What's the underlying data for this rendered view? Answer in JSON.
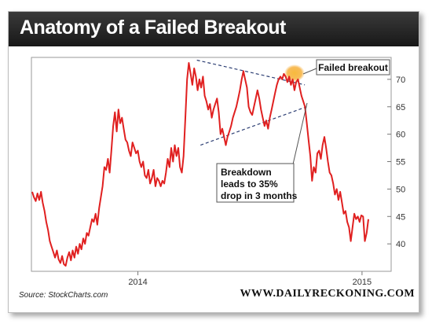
{
  "header": {
    "title": "Anatomy of a Failed Breakout"
  },
  "footer": {
    "source": "Source: StockCharts.com",
    "site": "WWW.DAILYRECKONING.COM"
  },
  "colors": {
    "price_line": "#e02020",
    "trend_line": "#2c3e73",
    "highlight": "#f5a623",
    "title_bg": "#2a2a2a"
  },
  "chart_data": {
    "type": "line",
    "title": "Anatomy of a Failed Breakout",
    "xlabel": "",
    "ylabel": "",
    "x_ticks": [
      "2014",
      "2015"
    ],
    "y_ticks": [
      40,
      45,
      50,
      55,
      60,
      65,
      70
    ],
    "ylim": [
      35,
      74
    ],
    "grid": false,
    "series": [
      {
        "name": "",
        "color": "#e02020",
        "values": [
          49.5,
          48.5,
          47.8,
          49.2,
          48.0,
          49.5,
          47.5,
          46.0,
          44.0,
          42.5,
          40.5,
          39.5,
          38.5,
          37.5,
          38.8,
          37.2,
          36.5,
          37.8,
          36.3,
          36.0,
          37.5,
          38.5,
          37.0,
          38.8,
          37.5,
          39.5,
          38.2,
          40.0,
          39.0,
          41.0,
          40.0,
          42.0,
          41.5,
          43.0,
          44.5,
          44.0,
          45.5,
          43.5,
          46.5,
          48.5,
          50.5,
          54.0,
          53.5,
          55.5,
          53.0,
          57.0,
          61.5,
          64.0,
          60.5,
          64.5,
          62.0,
          63.0,
          61.0,
          59.0,
          58.5,
          57.0,
          56.0,
          58.5,
          57.5,
          56.5,
          57.0,
          55.0,
          54.0,
          55.0,
          52.5,
          52.0,
          53.5,
          51.0,
          52.0,
          53.5,
          50.5,
          52.0,
          51.5,
          50.5,
          51.5,
          51.0,
          53.0,
          55.5,
          54.0,
          57.5,
          55.0,
          58.0,
          56.0,
          57.5,
          54.0,
          53.0,
          56.0,
          63.0,
          70.0,
          73.0,
          71.0,
          69.0,
          72.0,
          70.5,
          68.0,
          70.0,
          68.5,
          70.5,
          67.0,
          66.0,
          64.5,
          65.5,
          63.0,
          64.5,
          65.5,
          66.5,
          64.0,
          60.0,
          61.0,
          59.5,
          58.0,
          59.5,
          60.5,
          61.5,
          63.0,
          64.0,
          65.0,
          66.5,
          68.0,
          70.0,
          71.5,
          70.0,
          68.5,
          65.0,
          64.0,
          63.5,
          65.0,
          66.5,
          68.0,
          66.5,
          64.5,
          63.0,
          61.5,
          62.5,
          61.0,
          63.0,
          64.5,
          66.0,
          67.5,
          69.0,
          70.0,
          70.5,
          70.0,
          71.0,
          70.5,
          69.5,
          70.5,
          69.0,
          70.0,
          68.0,
          69.5,
          70.0,
          68.5,
          67.0,
          66.0,
          65.0,
          62.0,
          59.0,
          56.0,
          51.5,
          54.0,
          53.0,
          56.5,
          57.0,
          55.5,
          58.0,
          59.5,
          57.5,
          55.0,
          53.0,
          52.5,
          51.0,
          49.0,
          50.0,
          48.0,
          49.5,
          47.5,
          45.5,
          46.0,
          44.0,
          43.0,
          40.5,
          43.0,
          45.5,
          44.5,
          45.0,
          44.0,
          45.2,
          45.0,
          40.5,
          42.0,
          44.5
        ]
      }
    ],
    "annotations": [
      {
        "text": "Failed breakout"
      },
      {
        "text": "Breakdown leads to 35% drop in 3 months",
        "lines": [
          "Breakdown",
          "leads to 35%",
          "drop in 3 months"
        ]
      }
    ],
    "trendlines": [
      {
        "name": "upper",
        "from": [
          0.46,
          73.5
        ],
        "to": [
          0.76,
          69.0
        ]
      },
      {
        "name": "lower",
        "from": [
          0.47,
          58.0
        ],
        "to": [
          0.765,
          65.0
        ]
      }
    ]
  }
}
